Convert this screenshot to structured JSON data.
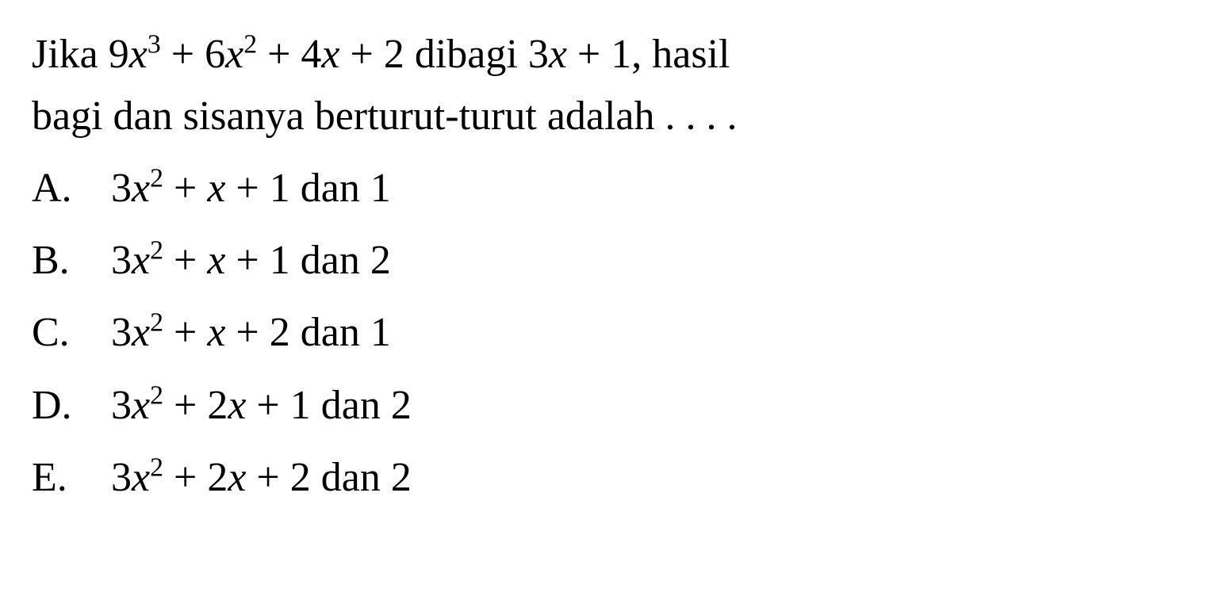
{
  "question": {
    "line1_parts": {
      "prefix": "Jika 9",
      "var1": "x",
      "exp1": "3",
      "mid1": " + 6",
      "var2": "x",
      "exp2": "2",
      "mid2": " + 4",
      "var3": "x",
      "mid3": " + 2 dibagi 3",
      "var4": "x",
      "suffix": " + 1, hasil"
    },
    "line2": "bagi dan sisanya berturut-turut adalah . . . ."
  },
  "options": [
    {
      "letter": "A.",
      "prefix": "3",
      "var1": "x",
      "exp1": "2",
      "mid1": " + ",
      "var2": "x",
      "suffix": " + 1 dan 1"
    },
    {
      "letter": "B.",
      "prefix": "3",
      "var1": "x",
      "exp1": "2",
      "mid1": " + ",
      "var2": "x",
      "suffix": " + 1 dan 2"
    },
    {
      "letter": "C.",
      "prefix": "3",
      "var1": "x",
      "exp1": "2",
      "mid1": " + ",
      "var2": "x",
      "suffix": " + 2 dan 1"
    },
    {
      "letter": "D.",
      "prefix": "3",
      "var1": "x",
      "exp1": "2",
      "mid1": " + 2",
      "var2": "x",
      "suffix": " + 1 dan 2"
    },
    {
      "letter": "E.",
      "prefix": "3",
      "var1": "x",
      "exp1": "2",
      "mid1": " + 2",
      "var2": "x",
      "suffix": " + 2 dan 2"
    }
  ],
  "style": {
    "font_family": "Times New Roman",
    "font_size_pt": 40,
    "text_color": "#000000",
    "background_color": "#ffffff"
  }
}
